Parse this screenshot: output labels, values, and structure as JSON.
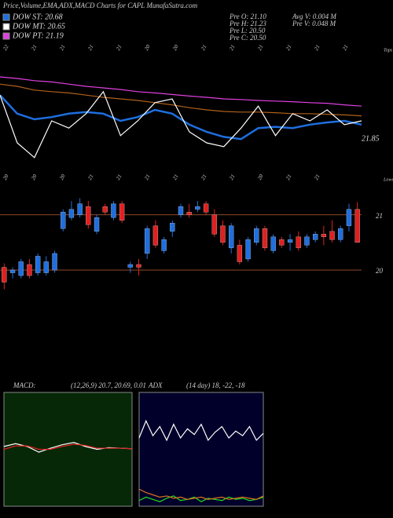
{
  "header": {
    "title": "Price,Volume,EMA,ADX,MACD Charts for CAPL MunafaSutra.com",
    "legend": [
      {
        "label": "DOW ST: 20.68",
        "color": "#1e6fe0"
      },
      {
        "label": "DOW MT: 20.65",
        "color": "#ffffff"
      },
      {
        "label": "DOW PT: 21.19",
        "color": "#e040e0"
      }
    ],
    "stats_left": [
      "Pre  O: 21.10",
      "Pre  H: 21.23",
      "Pre  L: 20.50",
      "Pre  C: 20.50"
    ],
    "stats_right": [
      "Avg V: 0.004  M",
      "Pre  V: 0.048 M"
    ]
  },
  "chart_data": [
    {
      "type": "line",
      "side_label": "Tops",
      "annotation": "21.85",
      "date_labels": [
        "22",
        "21",
        "21",
        "21",
        "21",
        "20",
        "20",
        "21",
        "21",
        "21",
        "21",
        "21",
        "21"
      ],
      "ylim": [
        19,
        22.5
      ],
      "series": [
        {
          "color": "#e040e0",
          "values": [
            21.8,
            21.75,
            21.68,
            21.64,
            21.57,
            21.5,
            21.45,
            21.4,
            21.33,
            21.29,
            21.24,
            21.19,
            21.15,
            21.1,
            21.08,
            21.05,
            21.03,
            21.01,
            20.98,
            20.96,
            20.91,
            20.87
          ]
        },
        {
          "color": "#b0601a",
          "values": [
            21.57,
            21.5,
            21.38,
            21.33,
            21.29,
            21.22,
            21.15,
            21.1,
            21.05,
            20.98,
            20.91,
            20.82,
            20.75,
            20.7,
            20.68,
            20.68,
            20.66,
            20.63,
            20.63,
            20.61,
            20.59,
            20.56
          ]
        },
        {
          "color": "#1e6fe0",
          "values": [
            21.22,
            20.63,
            20.45,
            20.52,
            20.63,
            20.68,
            20.63,
            20.4,
            20.52,
            20.75,
            20.63,
            20.28,
            20.05,
            19.89,
            19.82,
            20.17,
            20.21,
            20.17,
            20.28,
            20.35,
            20.4,
            20.28
          ]
        },
        {
          "color": "#ffffff",
          "values": [
            21.22,
            19.7,
            19.23,
            20.4,
            20.17,
            20.63,
            21.33,
            19.93,
            20.4,
            20.98,
            21.1,
            20.05,
            19.7,
            19.58,
            20.17,
            20.87,
            19.93,
            20.63,
            20.4,
            20.75,
            20.28,
            20.4
          ]
        }
      ]
    },
    {
      "type": "candlestick",
      "side_label": "Lows",
      "date_labels": [
        "20",
        "20",
        "20",
        "21",
        "21",
        "21",
        "21",
        "21",
        "21",
        "20",
        "21",
        "21"
      ],
      "ylim": [
        19.56,
        21.55
      ],
      "yticks": [
        20,
        21
      ],
      "grid": true,
      "up_color": "#1e6fe0",
      "down_color": "#e02020",
      "open": [
        20.05,
        19.95,
        19.9,
        20.1,
        19.95,
        19.95,
        20.0,
        20.75,
        20.95,
        21.0,
        21.15,
        20.7,
        21.15,
        20.95,
        21.2,
        20.05,
        20.1,
        20.3,
        20.8,
        20.35,
        20.7,
        21.0,
        21.05,
        21.1,
        21.2,
        21.0,
        20.8,
        20.4,
        20.45,
        20.2,
        20.5,
        20.75,
        20.35,
        20.55,
        20.5,
        20.6,
        20.45,
        20.55,
        20.65,
        20.7,
        20.55,
        20.8,
        21.1
      ],
      "high": [
        20.12,
        20.05,
        20.2,
        20.2,
        20.3,
        20.25,
        20.35,
        21.1,
        21.25,
        21.3,
        21.25,
        21.0,
        21.2,
        21.25,
        21.25,
        20.15,
        20.2,
        20.8,
        20.9,
        20.6,
        20.9,
        21.2,
        21.2,
        21.25,
        21.25,
        21.1,
        20.9,
        20.85,
        20.55,
        20.6,
        20.8,
        20.8,
        20.65,
        20.6,
        20.65,
        20.7,
        20.65,
        20.7,
        20.8,
        20.9,
        20.8,
        21.2,
        21.23
      ],
      "low": [
        19.65,
        19.85,
        19.85,
        19.85,
        19.9,
        19.9,
        19.95,
        20.7,
        20.9,
        20.95,
        20.75,
        20.65,
        21.0,
        20.9,
        20.85,
        19.95,
        19.9,
        20.2,
        20.4,
        20.3,
        20.6,
        20.95,
        20.95,
        21.05,
        21.0,
        20.6,
        20.45,
        20.3,
        20.1,
        20.15,
        20.45,
        20.35,
        20.3,
        20.4,
        20.35,
        20.35,
        20.4,
        20.5,
        20.45,
        20.5,
        20.5,
        20.7,
        20.5
      ],
      "close": [
        19.78,
        20.0,
        20.15,
        19.9,
        20.25,
        20.15,
        20.3,
        21.05,
        21.1,
        21.2,
        20.82,
        20.95,
        21.05,
        21.2,
        20.9,
        20.1,
        20.05,
        20.75,
        20.45,
        20.55,
        20.85,
        21.15,
        21.0,
        21.15,
        21.05,
        20.65,
        20.5,
        20.8,
        20.15,
        20.55,
        20.75,
        20.4,
        20.6,
        20.45,
        20.55,
        20.4,
        20.6,
        20.65,
        20.6,
        20.55,
        20.75,
        21.1,
        20.5
      ]
    },
    {
      "type": "line",
      "label": "MACD:",
      "info": "(12,26,9) 20.7, 20.69, 0.01",
      "background": "#062806",
      "ylim": [
        -1,
        1
      ],
      "series": [
        {
          "color": "#ffffff",
          "values": [
            0.05,
            0.1,
            0.05,
            -0.05,
            0.02,
            0.08,
            0.12,
            0.05,
            0.0,
            0.03,
            0.02,
            0.01
          ]
        },
        {
          "color": "#e02020",
          "values": [
            0,
            0.06,
            0.06,
            0.0,
            0,
            0.05,
            0.09,
            0.07,
            0.02,
            0.02,
            0.02,
            0.01
          ]
        }
      ]
    },
    {
      "type": "line",
      "label": "ADX",
      "info": "(14  day) 18, -22, -18",
      "background": "#00002a",
      "ylim": [
        0,
        100
      ],
      "series": [
        {
          "color": "#ffffff",
          "values": [
            60,
            75,
            62,
            70,
            58,
            72,
            60,
            68,
            63,
            72,
            58,
            65,
            70,
            60,
            66,
            62,
            70,
            58,
            64
          ]
        },
        {
          "color": "#20e020",
          "values": [
            5,
            8,
            6,
            4,
            7,
            9,
            5,
            6,
            8,
            4,
            7,
            6,
            5,
            8,
            6,
            7,
            5,
            6,
            8
          ]
        },
        {
          "color": "#e07020",
          "values": [
            15,
            12,
            10,
            8,
            9,
            7,
            8,
            6,
            7,
            8,
            6,
            7,
            8,
            6,
            7,
            8,
            7,
            6,
            9
          ]
        }
      ]
    }
  ]
}
